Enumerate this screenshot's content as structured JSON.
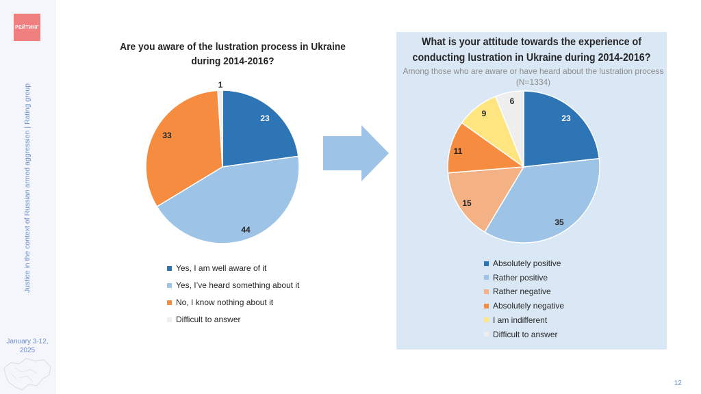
{
  "sidebar": {
    "logo_text": "РЕЙТИНГ",
    "caption": "Justice in the context of Russian armed aggression | Rating group",
    "date": "January 3-12, 2025"
  },
  "page_number": "12",
  "colors": {
    "dark_blue": "#2e75b6",
    "light_blue": "#9dc3e6",
    "light_orange": "#f4b183",
    "orange": "#f58c3f",
    "yellow": "#ffe57f",
    "light_gray": "#eeeeee",
    "panel_bg": "#dae7f5"
  },
  "chart_data": [
    {
      "type": "pie",
      "title": "Are you aware of the lustration process in Ukraine during 2014-2016?",
      "subtitle": "",
      "labels": [
        "Yes, I am well aware of it",
        "Yes, I’ve heard something about it",
        "No, I know nothing about it",
        "Difficult to answer"
      ],
      "values": [
        23,
        44,
        33,
        1
      ],
      "colors": [
        "#2e75b6",
        "#9dc3e6",
        "#f58c3f",
        "#eeeeee"
      ],
      "legend_position": "bottom"
    },
    {
      "type": "pie",
      "title": "What is your attitude towards the experience of conducting lustration in Ukraine during 2014-2016?",
      "subtitle": "Among those who are aware or have heard about the lustration process (N=1334)",
      "labels": [
        "Absolutely positive",
        "Rather positive",
        "Rather negative",
        "Absolutely negative",
        "I am indifferent",
        "Difficult to answer"
      ],
      "values": [
        23,
        35,
        15,
        11,
        9,
        6
      ],
      "colors": [
        "#2e75b6",
        "#9dc3e6",
        "#f4b183",
        "#f58c3f",
        "#ffe57f",
        "#eeeeee"
      ],
      "legend_position": "bottom"
    }
  ]
}
